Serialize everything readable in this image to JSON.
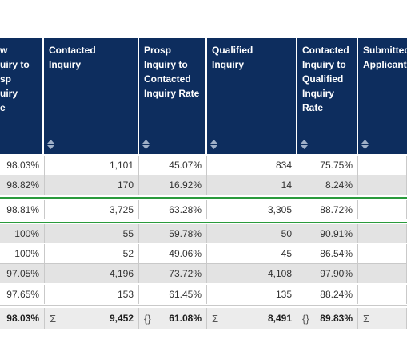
{
  "columns": [
    {
      "label": "w\nuiry to\nsp\nuiry\ne"
    },
    {
      "label": "Contacted\nInquiry"
    },
    {
      "label": "Prosp\nInquiry to\nContacted\nInquiry Rate"
    },
    {
      "label": "Qualified\nInquiry"
    },
    {
      "label": "Contacted\nInquiry to\nQualified\nInquiry\nRate"
    },
    {
      "label": "Submitted\nApplicant"
    }
  ],
  "rows": [
    [
      "98.03%",
      "1,101",
      "45.07%",
      "834",
      "75.75%",
      ""
    ],
    [
      "98.82%",
      "170",
      "16.92%",
      "14",
      "8.24%",
      ""
    ],
    [
      "98.81%",
      "3,725",
      "63.28%",
      "3,305",
      "88.72%",
      ""
    ],
    [
      "100%",
      "55",
      "59.78%",
      "50",
      "90.91%",
      ""
    ],
    [
      "100%",
      "52",
      "49.06%",
      "45",
      "86.54%",
      ""
    ],
    [
      "97.05%",
      "4,196",
      "73.72%",
      "4,108",
      "97.90%",
      ""
    ],
    [
      "97.65%",
      "153",
      "61.45%",
      "135",
      "88.24%",
      ""
    ]
  ],
  "totals": {
    "c0": "98.03%",
    "c1_sym": "Σ",
    "c1": "9,452",
    "c2_sym": "{}",
    "c2": "61.08%",
    "c3_sym": "Σ",
    "c3": "8,491",
    "c4_sym": "{}",
    "c4": "89.83%",
    "c5_sym": "Σ"
  },
  "colors": {
    "header_bg": "#0d2d5e",
    "highlight": "#2a9a3c",
    "alt_row": "#e3e3e3"
  },
  "icons": {
    "sort": "sort-updown-icon"
  }
}
